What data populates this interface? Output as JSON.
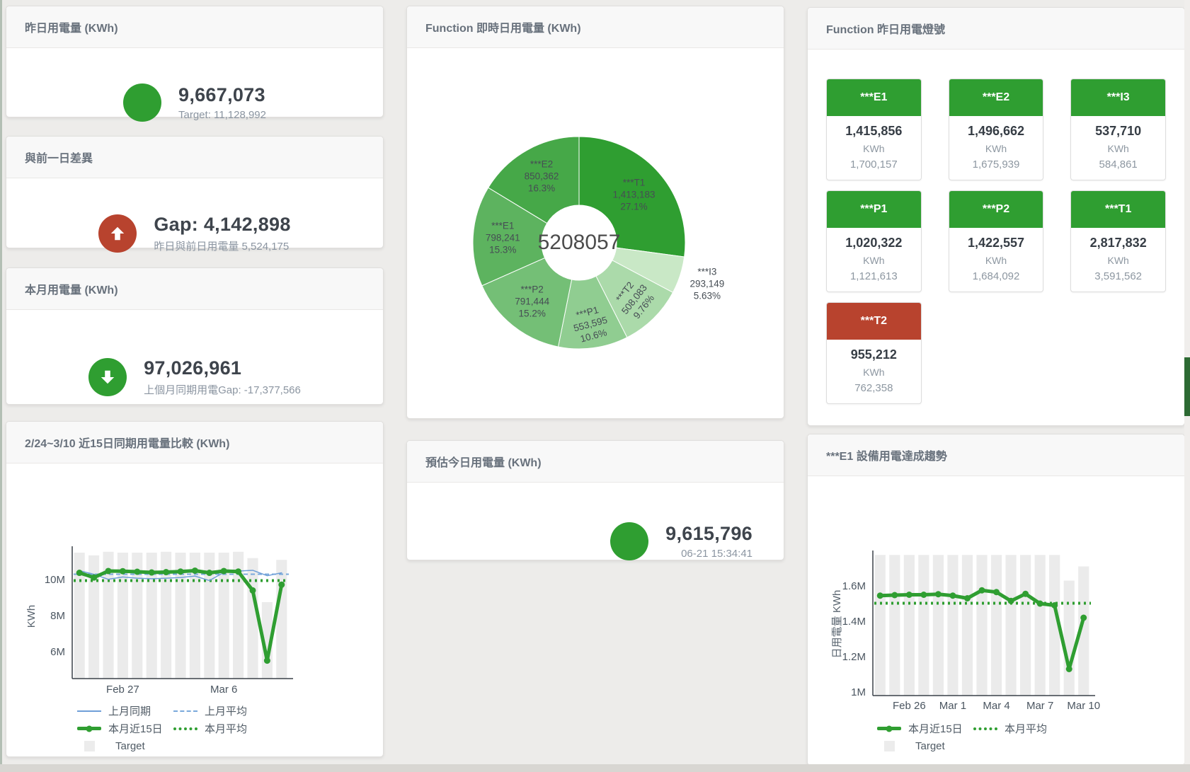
{
  "cards": {
    "yesterday": {
      "title": "昨日用電量 (KWh)",
      "value": "9,667,073",
      "sub": "Target: 11,128,992"
    },
    "diff": {
      "title": "與前一日差異",
      "value": "Gap: 4,142,898",
      "sub": "昨日與前日用電量 5,524,175"
    },
    "month": {
      "title": "本月用電量 (KWh)",
      "value": "97,026,961",
      "sub": "上個月同期用電Gap: -17,377,566"
    },
    "estimate": {
      "title": "預估今日用電量 (KWh)",
      "value": "9,615,796",
      "sub": "06-21 15:34:41"
    }
  },
  "lights": {
    "title": "Function 昨日用電燈號",
    "unit": "KWh",
    "status_colors": {
      "green": "#2f9e31",
      "red": "#b8432e"
    },
    "tiles": [
      {
        "label": "***E1",
        "value": "1,415,856",
        "target": "1,700,157",
        "status": "green"
      },
      {
        "label": "***E2",
        "value": "1,496,662",
        "target": "1,675,939",
        "status": "green"
      },
      {
        "label": "***I3",
        "value": "537,710",
        "target": "584,861",
        "status": "green"
      },
      {
        "label": "***P1",
        "value": "1,020,322",
        "target": "1,121,613",
        "status": "green"
      },
      {
        "label": "***P2",
        "value": "1,422,557",
        "target": "1,684,092",
        "status": "green"
      },
      {
        "label": "***T1",
        "value": "2,817,832",
        "target": "3,591,562",
        "status": "green"
      },
      {
        "label": "***T2",
        "value": "955,212",
        "target": "762,358",
        "status": "red"
      }
    ]
  },
  "chart_data": [
    {
      "type": "pie",
      "title": "Function 即時日用電量 (KWh)",
      "center_total": "5208057",
      "slices": [
        {
          "name": "***T1",
          "value": 1413183,
          "display": "1,413,183",
          "pct": 27.1,
          "pct_label": "27.1%",
          "color": "#2f9e31"
        },
        {
          "name": "***I3",
          "value": 293149,
          "display": "293,149",
          "pct": 5.63,
          "pct_label": "5.63%",
          "color": "#c9e8c6"
        },
        {
          "name": "***T2",
          "value": 508083,
          "display": "508,083",
          "pct": 9.76,
          "pct_label": "9.76%",
          "color": "#abdaaa"
        },
        {
          "name": "***P1",
          "value": 553595,
          "display": "553,595",
          "pct": 10.6,
          "pct_label": "10.6%",
          "color": "#90cd91"
        },
        {
          "name": "***P2",
          "value": 791444,
          "display": "791,444",
          "pct": 15.2,
          "pct_label": "15.2%",
          "color": "#74bf76"
        },
        {
          "name": "***E1",
          "value": 798241,
          "display": "798,241",
          "pct": 15.3,
          "pct_label": "15.3%",
          "color": "#5db35f"
        },
        {
          "name": "***E2",
          "value": 850362,
          "display": "850,362",
          "pct": 16.3,
          "pct_label": "16.3%",
          "color": "#46a848"
        }
      ]
    },
    {
      "type": "line",
      "title": "2/24~3/10 近15日同期用電量比較 (KWh)",
      "ylabel": "KWh",
      "values_unit": "millions of KWh",
      "ylim": [
        4.5,
        11.62
      ],
      "y_ticks": [
        {
          "value": 6,
          "label": "6M"
        },
        {
          "value": 8,
          "label": "8M"
        },
        {
          "value": 10,
          "label": "10M"
        }
      ],
      "x_labels": [
        {
          "index": 3,
          "label": "Feb 27"
        },
        {
          "index": 10,
          "label": "Mar 6"
        }
      ],
      "target_bars": {
        "name": "Target",
        "color": "#ebebeb",
        "values": [
          11.5,
          11.35,
          11.55,
          11.5,
          11.5,
          11.5,
          11.55,
          11.5,
          11.5,
          11.5,
          11.5,
          11.55,
          11.2,
          8.75,
          11.1
        ]
      },
      "series": [
        {
          "name": "上月同期",
          "color": "#6f9fd8",
          "values": [
            10.5,
            10.3,
            10.02,
            10.15,
            10.08,
            10.05,
            10.08,
            10.12,
            10.2,
            9.95,
            10.4,
            10.48,
            10.52,
            10.22,
            10.38
          ]
        },
        {
          "name": "本月近15日",
          "color": "#2f9e31",
          "values": [
            10.38,
            10.12,
            10.48,
            10.47,
            10.44,
            10.4,
            10.42,
            10.45,
            10.5,
            10.38,
            10.48,
            10.45,
            9.4,
            5.5,
            9.72
          ]
        }
      ],
      "avg_lines": [
        {
          "name": "上月平均",
          "value": 10.3,
          "color": "#7aa9db"
        },
        {
          "name": "本月平均",
          "value": 9.95,
          "color": "#2f9e31"
        }
      ],
      "legend": [
        {
          "label": "上月同期",
          "style": "blue-line"
        },
        {
          "label": "上月平均",
          "style": "blue-dash"
        },
        {
          "label": "本月近15日",
          "style": "green-line"
        },
        {
          "label": "本月平均",
          "style": "green-dot"
        },
        {
          "label": "Target",
          "style": "gray-box"
        }
      ]
    },
    {
      "type": "line",
      "title": "***E1 設備用電達成趨勢",
      "ylabel": "日用電量 KWh",
      "values_unit": "millions of KWh",
      "ylim": [
        0.98,
        1.776
      ],
      "y_ticks": [
        {
          "value": 1.0,
          "label": "1M"
        },
        {
          "value": 1.2,
          "label": "1.2M"
        },
        {
          "value": 1.4,
          "label": "1.4M"
        },
        {
          "value": 1.6,
          "label": "1.6M"
        }
      ],
      "x_labels": [
        {
          "index": 2,
          "label": "Feb 26"
        },
        {
          "index": 5,
          "label": "Mar 1"
        },
        {
          "index": 8,
          "label": "Mar 4"
        },
        {
          "index": 11,
          "label": "Mar 7"
        },
        {
          "index": 14,
          "label": "Mar 10"
        }
      ],
      "target_bars": {
        "name": "Target",
        "color": "#ebebeb",
        "values": [
          1.775,
          1.775,
          1.775,
          1.775,
          1.775,
          1.775,
          1.775,
          1.775,
          1.775,
          1.775,
          1.775,
          1.775,
          1.775,
          1.63,
          1.71
        ]
      },
      "series": [
        {
          "name": "本月近15日",
          "color": "#2f9e31",
          "values": [
            1.545,
            1.548,
            1.55,
            1.55,
            1.553,
            1.545,
            1.53,
            1.575,
            1.565,
            1.515,
            1.555,
            1.5,
            1.49,
            1.13,
            1.42
          ]
        }
      ],
      "avg_lines": [
        {
          "name": "本月平均",
          "value": 1.502,
          "color": "#2f9e31"
        }
      ],
      "legend": [
        {
          "label": "本月近15日",
          "style": "green-line"
        },
        {
          "label": "本月平均",
          "style": "green-dot"
        },
        {
          "label": "Target",
          "style": "gray-box"
        }
      ]
    }
  ]
}
